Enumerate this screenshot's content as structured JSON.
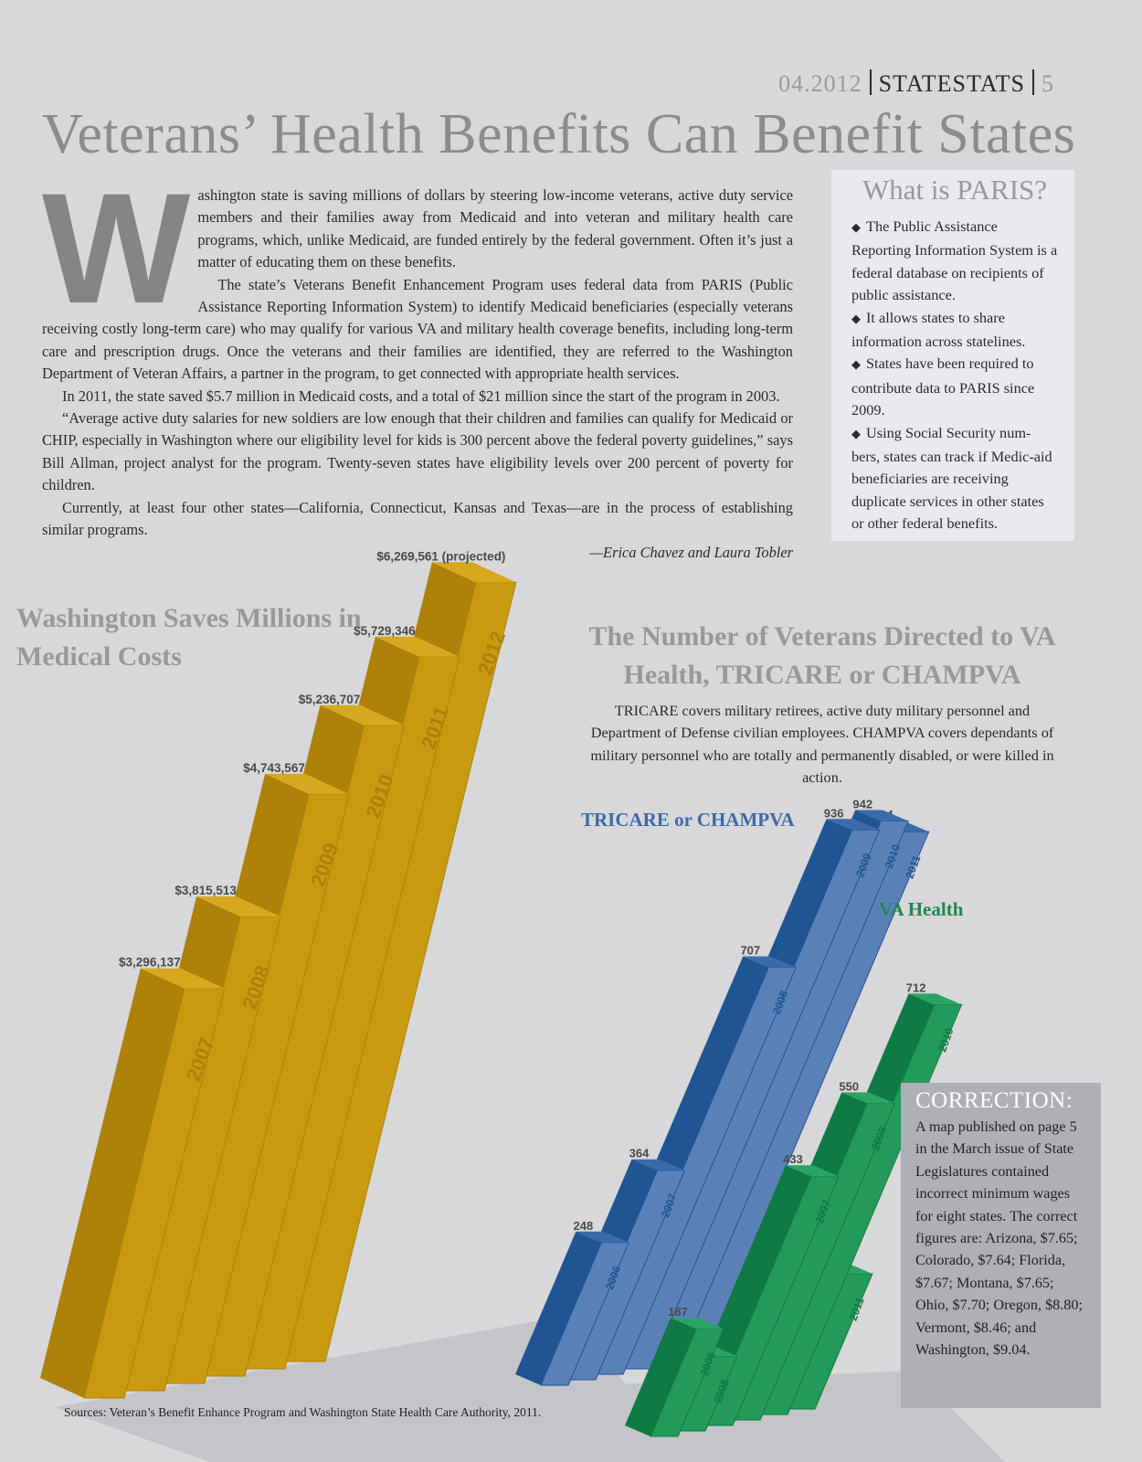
{
  "header": {
    "date": "04.2012",
    "section": "STATESTATS",
    "page": "5"
  },
  "title": "Veterans’ Health Benefits Can Benefit States",
  "article": {
    "dropcap": "W",
    "p1": "ashington state is saving millions of dollars by steering low-income veterans, active duty service members and their families away from Medicaid and into veteran and military health care programs, which, unlike Medicaid, are funded entirely by the federal government. Often it’s just a matter of educating them on these benefits.",
    "p2": "The state’s Veterans Benefit Enhancement Program uses federal data from PARIS (Public Assistance Reporting Information System) to identify Medicaid beneficiaries (especially veterans receiving costly long-term care) who may qualify for various VA and military health coverage benefits, including long-term care and prescription drugs. Once the veterans and their families are identified, they are referred to the Washington Department of Veteran Affairs, a partner in the program, to get connected with appropriate health services.",
    "p3": "In 2011, the state saved $5.7 million in Medicaid costs, and a total of $21 million since the start of the program in 2003.",
    "p4": "“Average active duty salaries for new soldiers are low enough that their children and families can qualify for Medicaid or CHIP, especially in Washington where our eligibility level for kids is 300 percent above the federal poverty guidelines,” says Bill Allman, project analyst for the program. Twenty-seven states have eligibility levels over 200 percent of poverty for children.",
    "p5": "Currently, at least four other states—California, Connecticut, Kansas and Texas—are in the process of establishing similar programs.",
    "byline": "—Erica Chavez and Laura Tobler"
  },
  "paris_box": {
    "title": "What is PARIS?",
    "bullet_glyph": "◆",
    "bullets": [
      "The Public Assistance Reporting Information System is a federal database on recipients of public assistance.",
      "It allows states to share information across statelines.",
      "States have been required to contribute data to PARIS since 2009.",
      "Using Social Security num-bers, states can track if Medic-aid beneficiaries are receiving duplicate services in other states or other federal benefits."
    ]
  },
  "correction": {
    "title": "CORRECTION:",
    "text": "A map published on page 5 in the March issue of State Legislatures contained incorrect minimum wages for eight states. The correct figures are: Arizona, $7.65; Colorado, $7.64; Florida, $7.67; Montana, $7.65; Ohio, $7.70; Oregon, $8.80; Vermont, $8.46; and Washington, $9.04."
  },
  "sources": "Sources: Veteran’s Benefit Enhance Program and Washington State Health Care Authority, 2011.",
  "colors": {
    "gold_front": "#c99a10",
    "gold_side": "#ad8208",
    "gold_top": "#d7a81e",
    "blue_front": "#5a80b8",
    "blue_side": "#1f5592",
    "blue_top": "#3b6bab",
    "green_front": "#23995a",
    "green_side": "#0f7a43",
    "green_top": "#2aa463",
    "title_gray": "#999999",
    "tricare_label": "#3b6aa8",
    "va_label": "#1d8a4f"
  },
  "chart_data": [
    {
      "type": "bar",
      "title": "Washington Saves Millions in Medical Costs",
      "categories": [
        "2007",
        "2008",
        "2009",
        "2010",
        "2011",
        "2012"
      ],
      "values": [
        3296137,
        3815513,
        4743567,
        5236707,
        5729346,
        6269561
      ],
      "value_labels": [
        "$3,296,137",
        "$3,815,513",
        "$4,743,567",
        "$5,236,707",
        "$5,729,346",
        "$6,269,561 (projected)"
      ],
      "ylim": [
        0,
        6500000
      ]
    },
    {
      "type": "bar",
      "title": "The Number of Veterans Directed to VA Health, TRICARE or CHAMPVA",
      "subtitle": "TRICARE covers military retirees, active duty military personnel and Department of Defense civilian employees. CHAMPVA covers dependants of military personnel who are totally and permanently disabled, or were killed in action.",
      "series": [
        {
          "name": "TRICARE or  CHAMPVA",
          "categories": [
            "2006",
            "2007",
            "2008",
            "2009",
            "2010",
            "2011"
          ],
          "values": [
            248,
            364,
            707,
            936,
            942,
            914
          ]
        },
        {
          "name": "VA Health",
          "categories": [
            "2006",
            "2008",
            "2007",
            "2009",
            "2010",
            "2011"
          ],
          "values": [
            187,
            130,
            433,
            550,
            712,
            235
          ]
        }
      ],
      "ylim": [
        0,
        1000
      ]
    }
  ]
}
